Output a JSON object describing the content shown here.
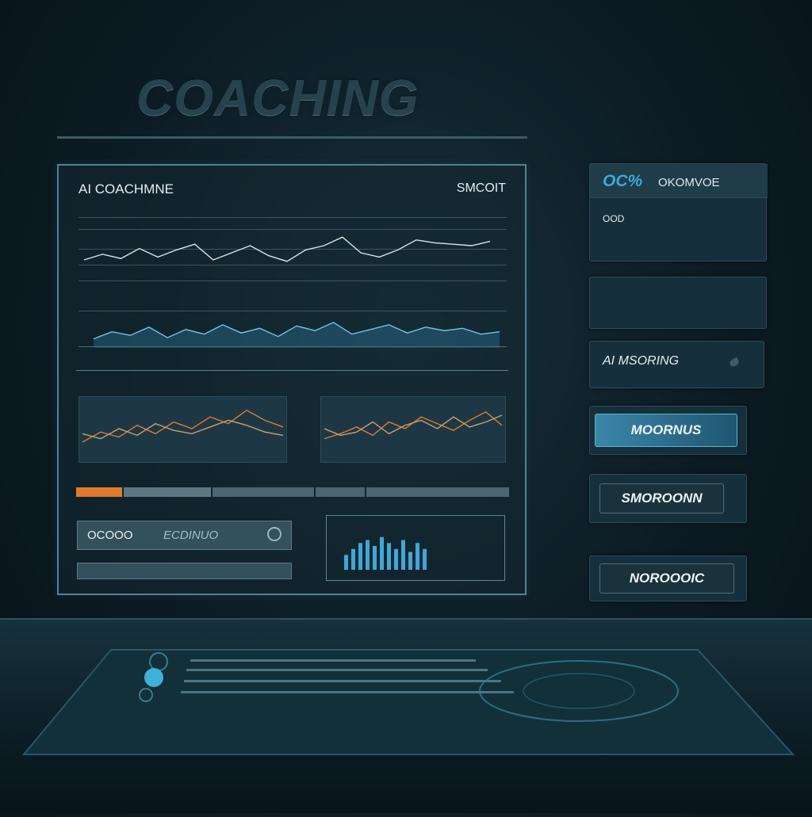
{
  "header": {
    "title": "COACHING"
  },
  "main_panel": {
    "title": "AI COACHMNE",
    "right_label": "SMCOIT",
    "chart1_top_label": "",
    "chart1_bottom_label": "",
    "chart2_label": "",
    "section_label": "",
    "field1_value": "OCOOO",
    "field1_placeholder": "ECDINUO",
    "field2_value": ""
  },
  "side": {
    "stat_value": "OC%",
    "stat_label": "OKOMVOE",
    "stat_line1": "OOD",
    "stat_line2": "",
    "info_line1": "",
    "info_line2": "",
    "ai_label": "AI MSORING",
    "btn1": "MOORNUS",
    "btn2": "SMOROONN",
    "btn3": "NOROOOIC"
  },
  "colors": {
    "accent_blue": "#3fa8d8",
    "accent_orange": "#e07a2e",
    "panel_border": "#56808f"
  },
  "chart_data": [
    {
      "type": "line",
      "title": "",
      "series": [
        {
          "name": "",
          "values": [
            30,
            38,
            32,
            46,
            34,
            44,
            52,
            30,
            40,
            50,
            36,
            28,
            44,
            50,
            62,
            40,
            34,
            44,
            58,
            54,
            52,
            50,
            56
          ]
        }
      ],
      "ylim": [
        0,
        80
      ]
    },
    {
      "type": "area",
      "title": "",
      "series": [
        {
          "name": "",
          "values": [
            10,
            22,
            16,
            30,
            12,
            26,
            18,
            34,
            20,
            28,
            14,
            32,
            24,
            38,
            18,
            26,
            34,
            20,
            30,
            24,
            28,
            18,
            22
          ]
        }
      ],
      "ylim": [
        0,
        50
      ]
    },
    {
      "type": "line",
      "title": "",
      "series": [
        {
          "name": "",
          "values": [
            20,
            32,
            26,
            40,
            30,
            44,
            36,
            50,
            42,
            58,
            46,
            38
          ]
        },
        {
          "name": "",
          "values": [
            30,
            24,
            36,
            28,
            42,
            34,
            30,
            38,
            46,
            40,
            32,
            28
          ]
        }
      ],
      "ylim": [
        0,
        70
      ]
    },
    {
      "type": "line",
      "title": "",
      "series": [
        {
          "name": "",
          "values": [
            24,
            30,
            38,
            28,
            44,
            36,
            50,
            42,
            34,
            46,
            56,
            40
          ]
        },
        {
          "name": "",
          "values": [
            36,
            28,
            32,
            44,
            30,
            40,
            46,
            36,
            50,
            38,
            44,
            52
          ]
        }
      ],
      "ylim": [
        0,
        70
      ]
    },
    {
      "type": "bar",
      "title": "",
      "values": [
        5,
        7,
        9,
        10,
        8,
        11,
        9,
        7,
        10,
        6,
        9,
        7
      ],
      "ylim": [
        0,
        12
      ]
    }
  ],
  "progress": {
    "orange_fraction": 0.11
  }
}
